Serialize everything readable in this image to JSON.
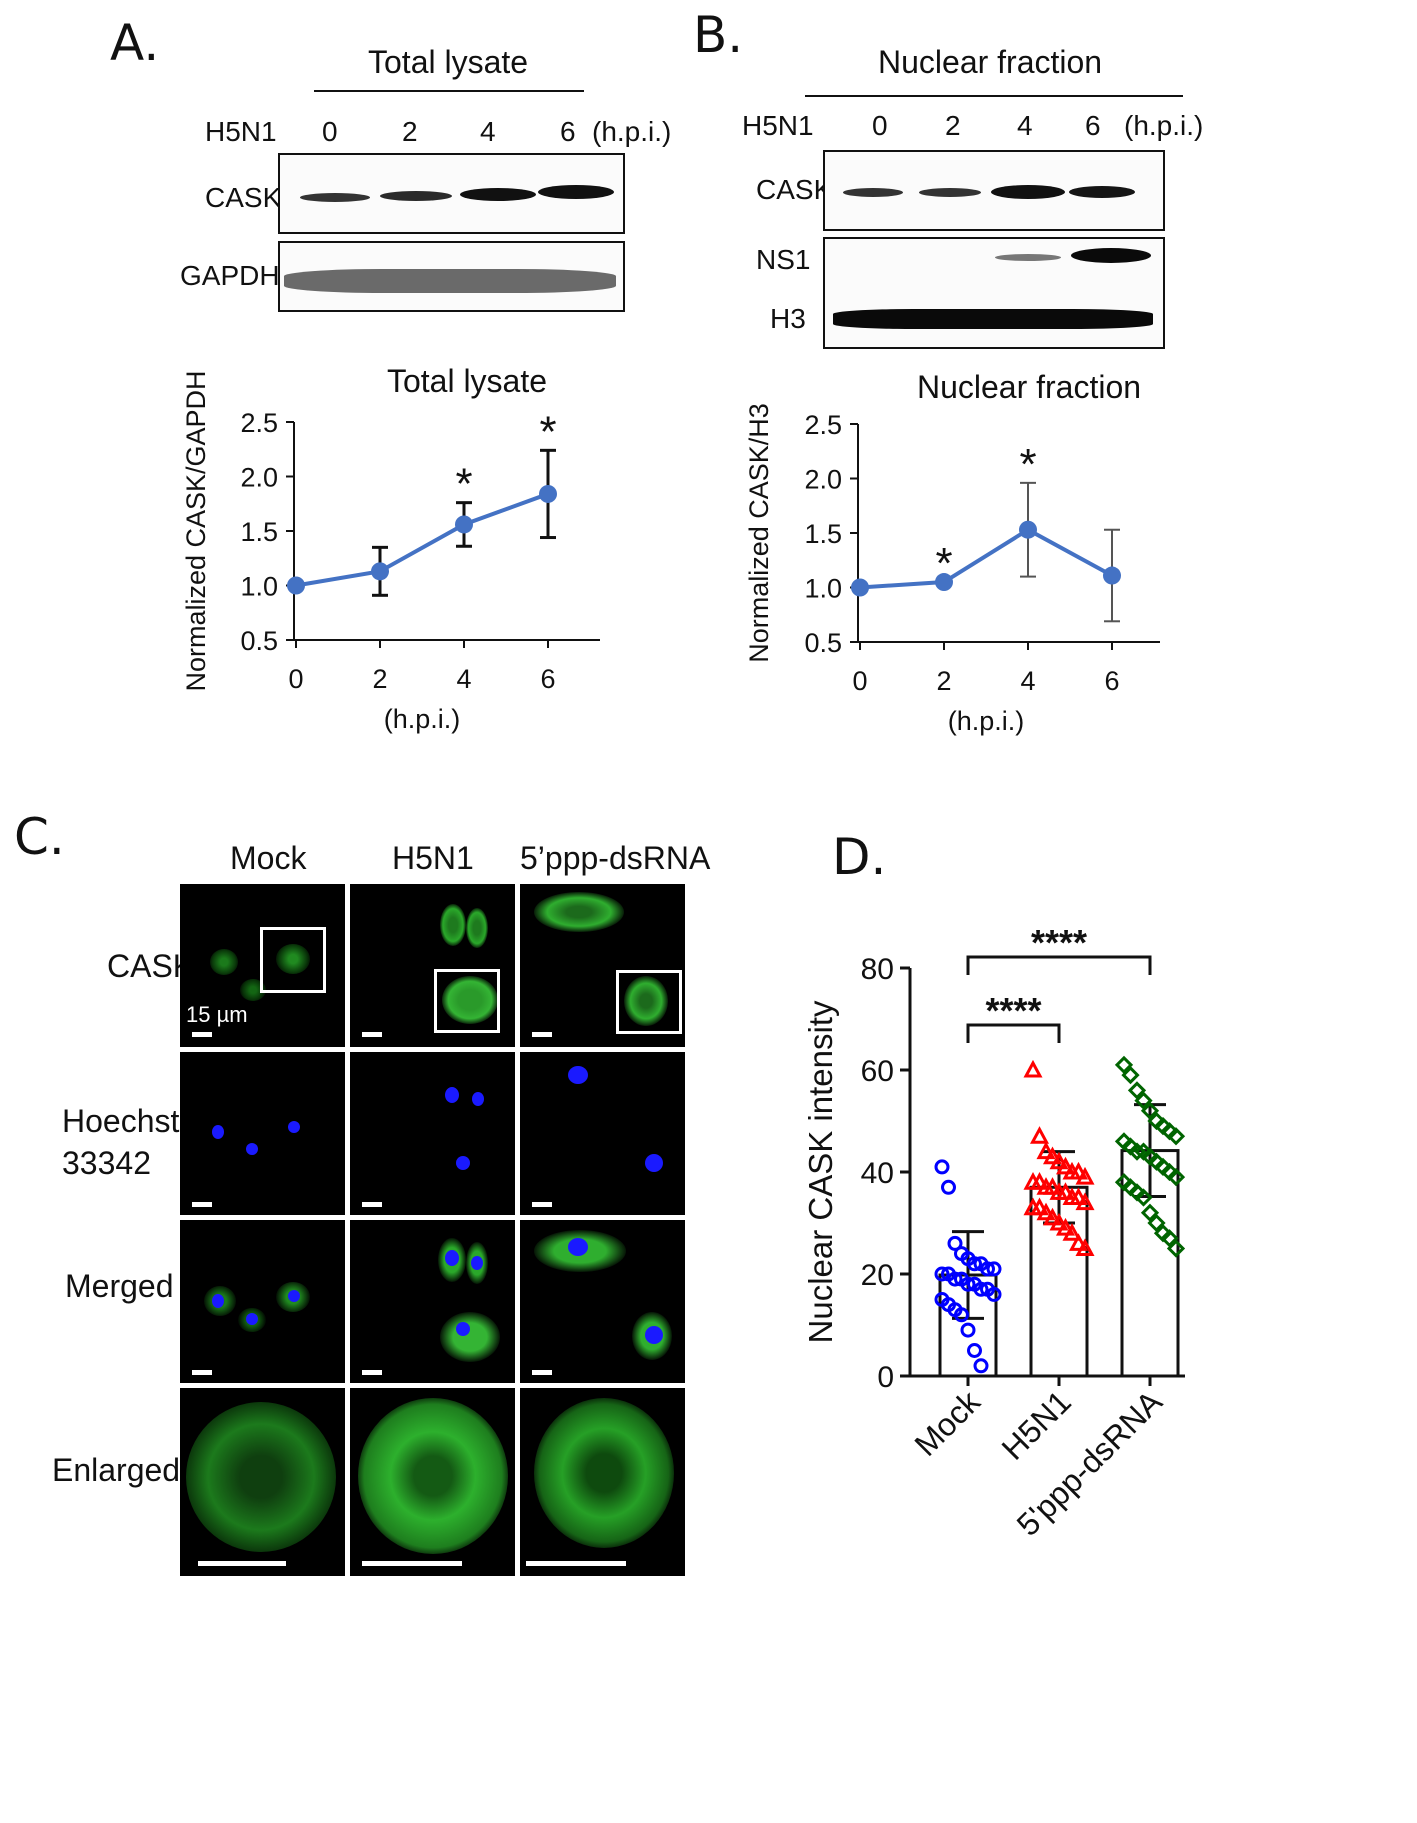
{
  "panels": {
    "A": {
      "label": "A.",
      "header": "Total lysate",
      "virus_label": "H5N1",
      "timepoints": [
        "0",
        "2",
        "4",
        "6"
      ],
      "unit": "(h.p.i.)",
      "blot_rows": [
        "CASK",
        "GAPDH"
      ]
    },
    "B": {
      "label": "B.",
      "header": "Nuclear fraction",
      "virus_label": "H5N1",
      "timepoints": [
        "0",
        "2",
        "4",
        "6"
      ],
      "unit": "(h.p.i.)",
      "blot_rows": [
        "CASK",
        "NS1",
        "H3"
      ]
    },
    "C": {
      "label": "C.",
      "columns": [
        "Mock",
        "H5N1",
        "5’ppp-dsRNA"
      ],
      "rows": [
        "CASK",
        "Hoechst\n33342",
        "Merged",
        "Enlarged"
      ],
      "scale_bar_label": "15 µm"
    },
    "D": {
      "label": "D."
    }
  },
  "chart_data": [
    {
      "type": "line",
      "title": "Total lysate",
      "xlabel": "(h.p.i.)",
      "ylabel": "Normalized CASK/GAPDH",
      "x": [
        0,
        2,
        4,
        6
      ],
      "y": [
        1.0,
        1.13,
        1.56,
        1.84
      ],
      "err": [
        0.0,
        0.22,
        0.2,
        0.4
      ],
      "significance": [
        "",
        "",
        "*",
        "*"
      ],
      "ylim": [
        0.5,
        2.5
      ],
      "yticks": [
        "0.5",
        "1.0",
        "1.5",
        "2.0",
        "2.5"
      ],
      "xticks": [
        "0",
        "2",
        "4",
        "6"
      ],
      "color": "#4472c4"
    },
    {
      "type": "line",
      "title": "Nuclear fraction",
      "xlabel": "(h.p.i.)",
      "ylabel": "Normalized CASK/H3",
      "x": [
        0,
        2,
        4,
        6
      ],
      "y": [
        1.0,
        1.05,
        1.53,
        1.11
      ],
      "err": [
        0.0,
        0.0,
        0.43,
        0.42
      ],
      "significance": [
        "",
        "*",
        "*",
        ""
      ],
      "ylim": [
        0.5,
        2.5
      ],
      "yticks": [
        "0.5",
        "1.0",
        "1.5",
        "2.0",
        "2.5"
      ],
      "xticks": [
        "0",
        "2",
        "4",
        "6"
      ],
      "color": "#4472c4"
    },
    {
      "type": "bar",
      "ylabel": "Nuclear CASK intensity",
      "categories": [
        "Mock",
        "H5N1",
        "5'ppp-dsRNA"
      ],
      "means": [
        19.8,
        37.0,
        44.2
      ],
      "sd": [
        8.5,
        7.0,
        9.0
      ],
      "ylim": [
        0,
        80
      ],
      "yticks": [
        "0",
        "20",
        "40",
        "60",
        "80"
      ],
      "colors": [
        "#0000ff",
        "#ff0000",
        "#006400"
      ],
      "markers": [
        "circle",
        "triangle",
        "diamond"
      ],
      "points": [
        [
          41,
          37,
          26,
          24,
          23,
          22,
          22,
          21,
          21,
          20,
          20,
          19,
          19,
          18,
          18,
          17,
          17,
          16,
          15,
          14,
          13,
          12,
          9,
          5,
          2
        ],
        [
          60,
          47,
          44,
          43,
          42,
          41,
          40,
          40,
          39,
          38,
          38,
          37,
          37,
          36,
          36,
          35,
          35,
          34,
          33,
          33,
          32,
          31,
          30,
          29,
          28,
          26,
          25
        ],
        [
          61,
          59,
          56,
          54,
          52,
          50,
          49,
          48,
          47,
          46,
          45,
          44,
          44,
          43,
          42,
          41,
          40,
          39,
          38,
          37,
          36,
          35,
          32,
          30,
          28,
          27,
          25
        ]
      ],
      "comparisons": [
        {
          "from": "Mock",
          "to": "H5N1",
          "label": "****"
        },
        {
          "from": "Mock",
          "to": "5'ppp-dsRNA",
          "label": "****"
        }
      ]
    }
  ]
}
